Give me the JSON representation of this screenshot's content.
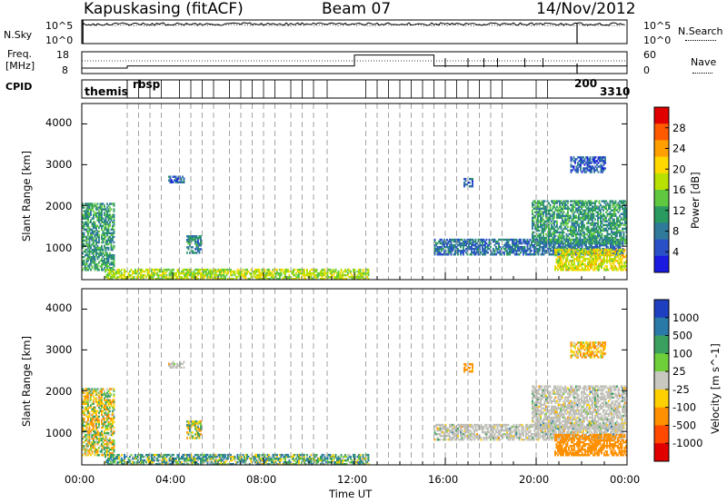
{
  "header": {
    "radar_title": "Kapuskasing (fitACF)",
    "beam_title": "Beam 07",
    "date_title": "14/Nov/2012"
  },
  "top_panel": {
    "left_label": "N.Sky",
    "right_label": "N.Search",
    "left_ticks": [
      "10^5",
      "10^0"
    ],
    "right_ticks": [
      "10^5",
      "10^0"
    ]
  },
  "freq_panel": {
    "left_label_line1": "Freq.",
    "left_label_line2": "[MHz]",
    "right_label": "Nave",
    "left_ticks": [
      "18",
      "8"
    ],
    "right_ticks": [
      "60",
      "0"
    ]
  },
  "cpid_panel": {
    "label": "CPID",
    "first_mode": "themis",
    "last_mode": "3310",
    "overlap_text_a": "rbsp",
    "overlap_text_b": "200"
  },
  "power_panel": {
    "ylabel": "Slant Range [km]",
    "yticks": [
      "4000",
      "3000",
      "2000",
      "1000"
    ],
    "colorbar_label": "Power [dB]",
    "colorbar_ticks": [
      "28",
      "24",
      "20",
      "16",
      "12",
      "8",
      "4"
    ],
    "colorbar_colors": [
      "#e00000",
      "#ff5a00",
      "#ffa000",
      "#ffd800",
      "#b8e000",
      "#60c840",
      "#2a9a60",
      "#2f7a9a",
      "#2a50c8",
      "#1a1ae0"
    ]
  },
  "velocity_panel": {
    "ylabel": "Slant Range [km]",
    "yticks": [
      "4000",
      "3000",
      "2000",
      "1000"
    ],
    "colorbar_label": "Velocity [m s^-1]",
    "colorbar_ticks": [
      "1000",
      "500",
      "100",
      "25",
      "-25",
      "-100",
      "-500",
      "-1000"
    ],
    "colorbar_colors": [
      "#1e40c0",
      "#2a7aa8",
      "#3aa060",
      "#6fcf3a",
      "#c8c8c0",
      "#ffd000",
      "#ff9000",
      "#ff4a00",
      "#e00000"
    ],
    "ground_scatter_color": "#c0c0b8"
  },
  "x_axis": {
    "label": "Time UT",
    "ticks": [
      "00:00",
      "04:00",
      "08:00",
      "12:00",
      "16:00",
      "20:00",
      "00:00"
    ]
  },
  "chart_data": {
    "type": "heatmap",
    "title": "Kapuskasing (fitACF)  Beam 07  14/Nov/2012",
    "xlabel": "Time UT",
    "x_range_hours": [
      0,
      24
    ],
    "ylabel": "Slant Range [km]",
    "ylim": [
      180,
      4500
    ],
    "panels": [
      "N.Sky / N.Search",
      "Freq. / Nave",
      "CPID",
      "Power [dB]",
      "Velocity [m s^-1]"
    ],
    "power_scale": [
      0,
      30
    ],
    "velocity_scale": [
      -1000,
      1000
    ],
    "mode_change_times_hours": [
      2.0,
      2.5,
      3.0,
      3.5,
      4.3,
      4.8,
      5.3,
      5.8,
      6.5,
      7.0,
      7.5,
      8.0,
      8.5,
      9.2,
      9.7,
      10.2,
      10.8,
      12.5,
      13.0,
      13.5,
      14.0,
      14.5,
      15.0,
      15.5,
      16.0,
      16.5,
      17.0,
      17.5,
      18.0,
      18.5,
      20.0,
      20.5
    ],
    "freq_steps": [
      {
        "t0": 0.0,
        "t1": 2.0,
        "mhz": 10.5
      },
      {
        "t0": 2.0,
        "t1": 12.0,
        "mhz": 11.5
      },
      {
        "t0": 12.0,
        "t1": 15.5,
        "mhz": 16.5
      },
      {
        "t0": 15.5,
        "t1": 24.0,
        "mhz": 11.5
      }
    ],
    "echo_regions": [
      {
        "t0": 0.0,
        "t1": 1.4,
        "r0": 400,
        "r1": 2050,
        "power_db": 10,
        "velocity": -40,
        "ground_scatter": false
      },
      {
        "t0": 1.0,
        "t1": 12.6,
        "r0": 180,
        "r1": 420,
        "power_db": 16,
        "velocity": 60,
        "ground_scatter": false
      },
      {
        "t0": 4.6,
        "t1": 5.2,
        "r0": 820,
        "r1": 1250,
        "power_db": 9,
        "velocity": -20,
        "ground_scatter": false
      },
      {
        "t0": 3.8,
        "t1": 4.5,
        "r0": 2550,
        "r1": 2720,
        "power_db": 6,
        "velocity": 0,
        "ground_scatter": true
      },
      {
        "t0": 15.5,
        "t1": 23.8,
        "r0": 780,
        "r1": 1150,
        "power_db": 7,
        "velocity": 0,
        "ground_scatter": true
      },
      {
        "t0": 19.8,
        "t1": 24.0,
        "r0": 1050,
        "r1": 2100,
        "power_db": 10,
        "velocity": 0,
        "ground_scatter": true
      },
      {
        "t0": 20.8,
        "t1": 24.0,
        "r0": 400,
        "r1": 900,
        "power_db": 18,
        "velocity": -300,
        "ground_scatter": false
      },
      {
        "t0": 21.5,
        "t1": 23.0,
        "r0": 2800,
        "r1": 3200,
        "power_db": 5,
        "velocity": -100,
        "ground_scatter": false
      },
      {
        "t0": 16.8,
        "t1": 17.2,
        "r0": 2450,
        "r1": 2650,
        "power_db": 6,
        "velocity": -200,
        "ground_scatter": false
      }
    ]
  }
}
